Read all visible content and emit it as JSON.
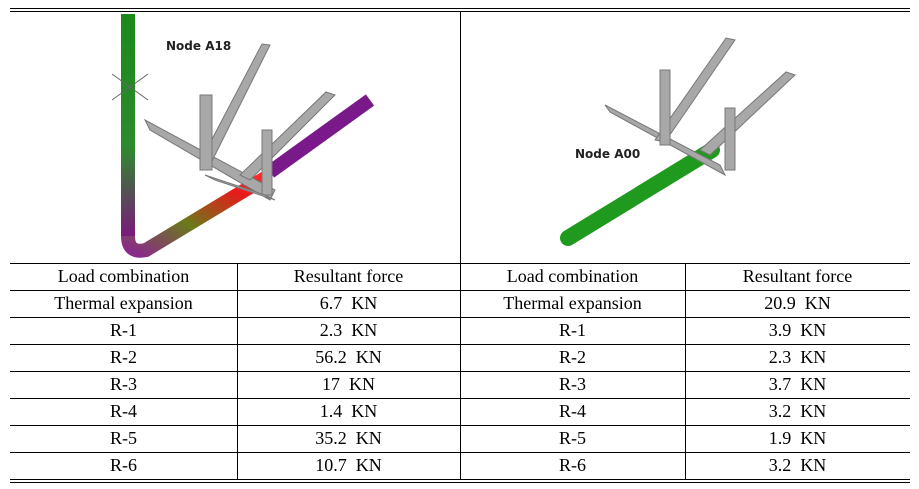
{
  "figures": [
    {
      "label": "Node A18"
    },
    {
      "label": "Node A00"
    }
  ],
  "table": {
    "header": [
      "Load combination",
      "Resultant force",
      "Load combination",
      "Resultant force"
    ],
    "rows": [
      [
        "Thermal expansion",
        "6.7  KN",
        "Thermal expansion",
        "20.9  KN"
      ],
      [
        "R-1",
        "2.3  KN",
        "R-1",
        "3.9  KN"
      ],
      [
        "R-2",
        "56.2  KN",
        "R-2",
        "2.3  KN"
      ],
      [
        "R-3",
        "17  KN",
        "R-3",
        "3.7  KN"
      ],
      [
        "R-4",
        "1.4  KN",
        "R-4",
        "3.2  KN"
      ],
      [
        "R-5",
        "35.2  KN",
        "R-5",
        "1.9  KN"
      ],
      [
        "R-6",
        "10.7  KN",
        "R-6",
        "3.2  KN"
      ]
    ]
  }
}
